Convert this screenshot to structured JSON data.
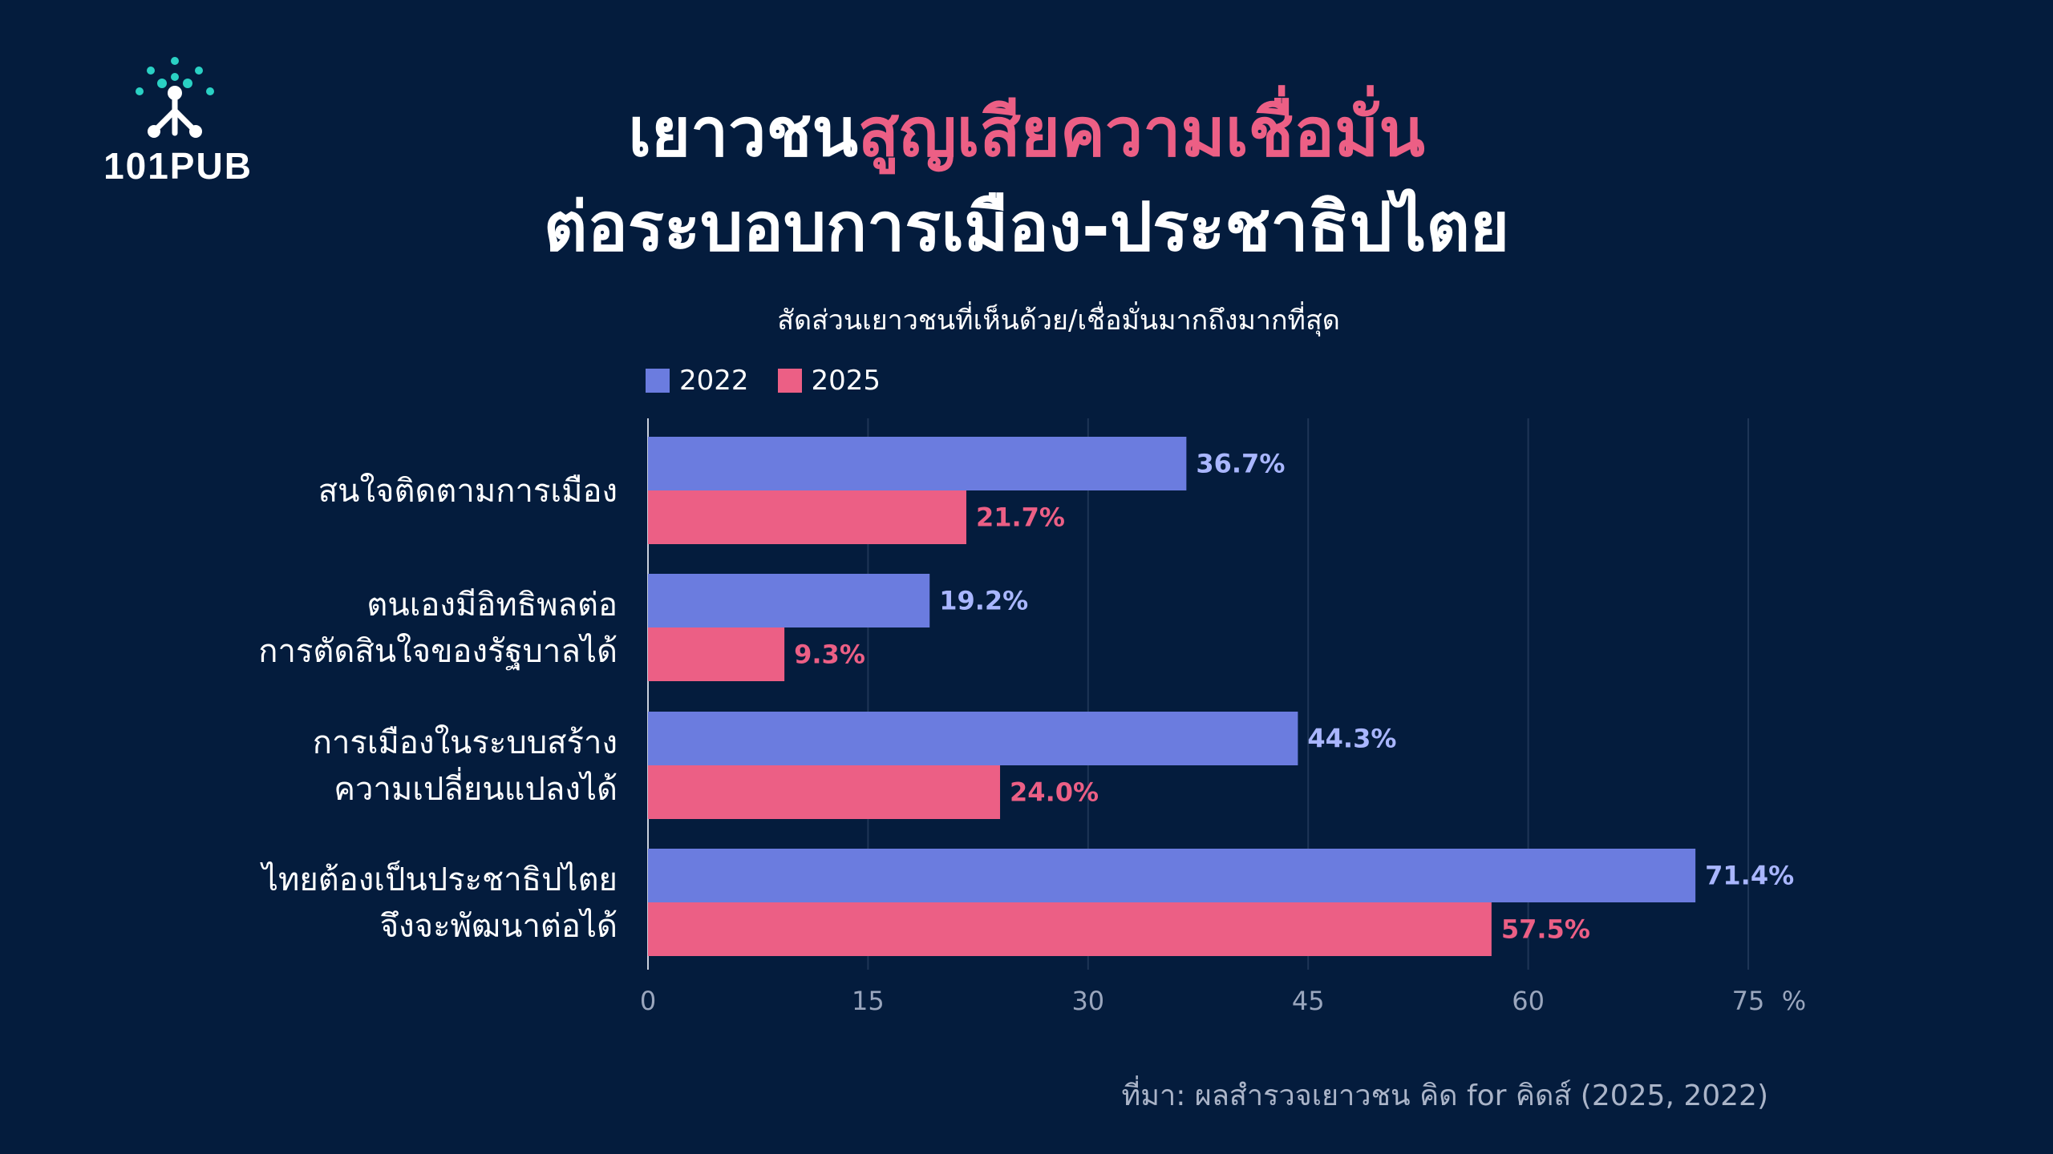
{
  "brand": {
    "logo_text": "101PUB"
  },
  "title": {
    "line1_prefix": "เยาวชน",
    "line1_highlight": "สูญเสียความเชื่อมั่น",
    "line2": "ต่อระบอบการเมือง-ประชาธิปไตย"
  },
  "colors": {
    "background": "#041c3d",
    "series_2022": "#6b7cdf",
    "series_2025": "#ec5f85",
    "label_2022": "#a9b6ff",
    "label_2025": "#ec5f85",
    "grid": "#1e3556"
  },
  "chart_data": {
    "type": "bar",
    "orientation": "horizontal",
    "subtitle": "สัดส่วนเยาวชนที่เห็นด้วย/เชื่อมั่นมากถึงมากที่สุด",
    "categories": [
      [
        "สนใจติดตามการเมือง"
      ],
      [
        "ตนเองมีอิทธิพลต่อ",
        "การตัดสินใจของรัฐบาลได้"
      ],
      [
        "การเมืองในระบบสร้าง",
        "ความเปลี่ยนแปลงได้"
      ],
      [
        "ไทยต้องเป็นประชาธิปไตย",
        "จึงจะพัฒนาต่อได้"
      ]
    ],
    "series": [
      {
        "name": "2022",
        "values": [
          36.7,
          19.2,
          44.3,
          71.4
        ],
        "labels": [
          "36.7%",
          "19.2%",
          "44.3%",
          "71.4%"
        ]
      },
      {
        "name": "2025",
        "values": [
          21.7,
          9.3,
          24.0,
          57.5
        ],
        "labels": [
          "21.7%",
          "9.3%",
          "24.0%",
          "57.5%"
        ]
      }
    ],
    "xlim": [
      0,
      75
    ],
    "xticks": [
      "0",
      "15",
      "30",
      "45",
      "60",
      "75"
    ],
    "xunit": "%",
    "grid": true,
    "legend_position": "top-left"
  },
  "source": "ที่มา: ผลสำรวจเยาวชน คิด for คิดส์ (2025, 2022)"
}
